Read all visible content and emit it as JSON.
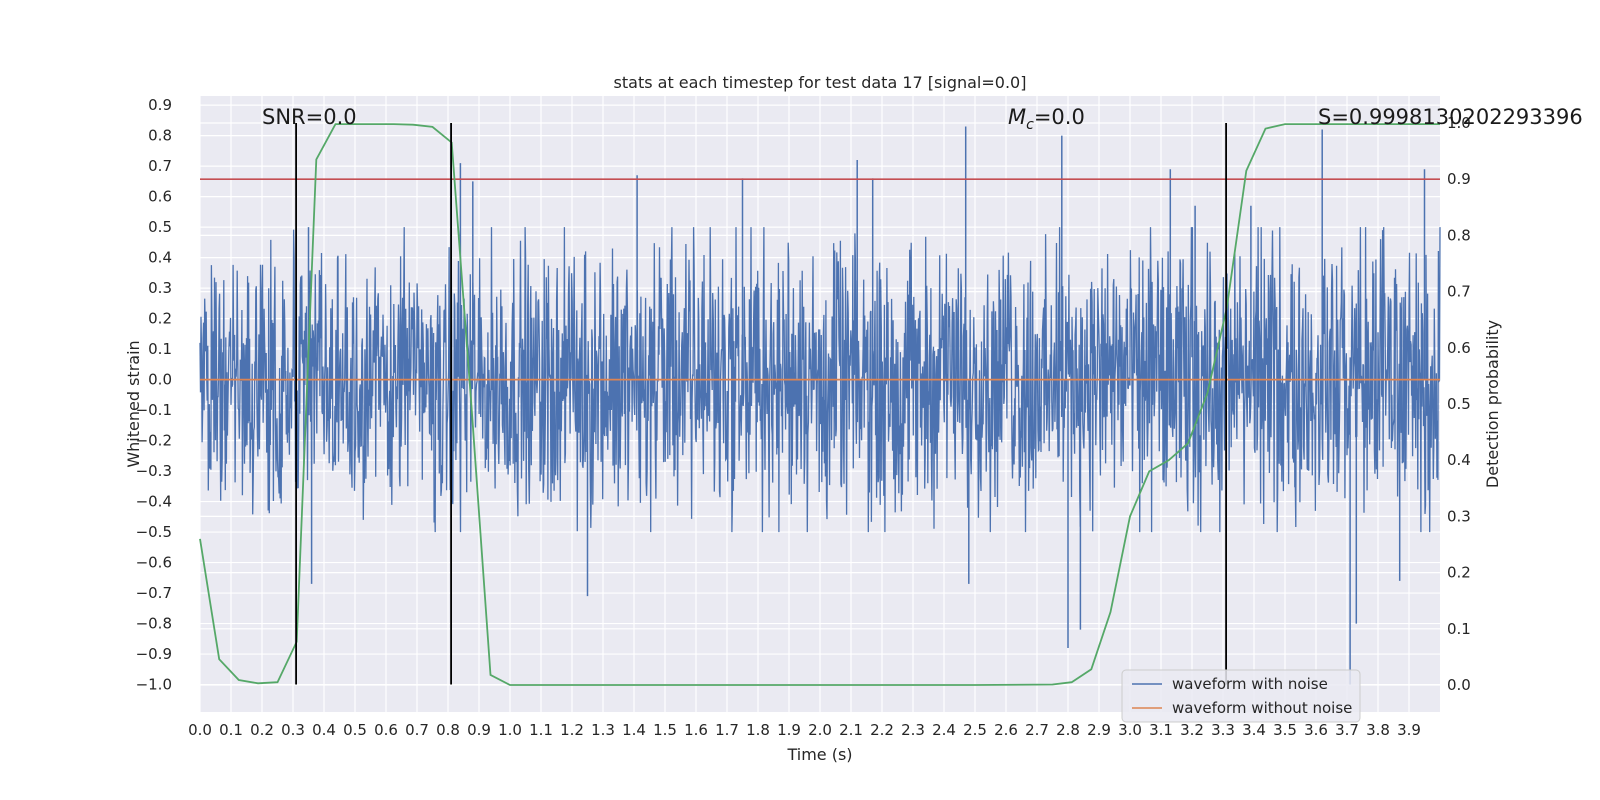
{
  "chart_data": {
    "type": "line",
    "title": "stats at each timestep for test data 17 [signal=0.0]",
    "xlabel": "Time (s)",
    "ylabel": "Whitened strain",
    "y2label": "Detection probability",
    "xlim": [
      0.0,
      4.0
    ],
    "ylim": [
      -1.09,
      0.93
    ],
    "y2lim": [
      -0.048,
      1.048
    ],
    "x_ticks": [
      0.0,
      0.1,
      0.2,
      0.3,
      0.4,
      0.5,
      0.6,
      0.7,
      0.8,
      0.9,
      1.0,
      1.1,
      1.2,
      1.3,
      1.4,
      1.5,
      1.6,
      1.7,
      1.8,
      1.9,
      2.0,
      2.1,
      2.2,
      2.3,
      2.4,
      2.5,
      2.6,
      2.7,
      2.8,
      2.9,
      3.0,
      3.1,
      3.2,
      3.3,
      3.4,
      3.5,
      3.6,
      3.7,
      3.8,
      3.9
    ],
    "y_ticks": [
      0.9,
      0.8,
      0.7,
      0.6,
      0.5,
      0.4,
      0.3,
      0.2,
      0.1,
      0.0,
      -0.1,
      -0.2,
      -0.3,
      -0.4,
      -0.5,
      -0.6,
      -0.7,
      -0.8,
      -0.9,
      -1.0
    ],
    "y_tick_labels": [
      "0.9",
      "0.8",
      "0.7",
      "0.6",
      "0.5",
      "0.4",
      "0.3",
      "0.2",
      "0.1",
      "0.0",
      "−0.1",
      "−0.2",
      "−0.3",
      "−0.4",
      "−0.5",
      "−0.6",
      "−0.7",
      "−0.8",
      "−0.9",
      "−1.0"
    ],
    "y2_ticks": [
      1.0,
      0.9,
      0.8,
      0.7,
      0.6,
      0.5,
      0.4,
      0.3,
      0.2,
      0.1,
      0.0
    ],
    "y2_tick_labels": [
      "1.0",
      "0.9",
      "0.8",
      "0.7",
      "0.6",
      "0.5",
      "0.4",
      "0.3",
      "0.2",
      "0.1",
      "0.0"
    ],
    "grid": true,
    "legend_position": "bottom-right",
    "series": [
      {
        "name": "waveform with noise",
        "color": "#4c72b0",
        "axis": "left",
        "kind": "noise",
        "typical_range": [
          -0.5,
          0.5
        ],
        "peaks": [
          {
            "x": 0.35,
            "y": 0.5
          },
          {
            "x": 0.36,
            "y": -0.67
          },
          {
            "x": 0.81,
            "y": 0.84
          },
          {
            "x": 0.84,
            "y": 0.71
          },
          {
            "x": 0.88,
            "y": 0.65
          },
          {
            "x": 1.25,
            "y": -0.71
          },
          {
            "x": 1.41,
            "y": 0.67
          },
          {
            "x": 1.75,
            "y": 0.66
          },
          {
            "x": 2.12,
            "y": 0.72
          },
          {
            "x": 2.17,
            "y": 0.66
          },
          {
            "x": 2.47,
            "y": 0.83
          },
          {
            "x": 2.48,
            "y": -0.67
          },
          {
            "x": 2.78,
            "y": 0.8
          },
          {
            "x": 2.8,
            "y": -0.88
          },
          {
            "x": 2.84,
            "y": -0.82
          },
          {
            "x": 3.13,
            "y": 0.69
          },
          {
            "x": 3.21,
            "y": 0.57
          },
          {
            "x": 3.39,
            "y": 0.57
          },
          {
            "x": 3.62,
            "y": 0.82
          },
          {
            "x": 3.71,
            "y": -1.0
          },
          {
            "x": 3.73,
            "y": -0.8
          },
          {
            "x": 3.87,
            "y": -0.66
          },
          {
            "x": 3.95,
            "y": 0.69
          }
        ]
      },
      {
        "name": "waveform without noise",
        "color": "#dd8452",
        "axis": "left",
        "x": [
          0.0,
          4.0
        ],
        "y": [
          0.0,
          0.0
        ]
      },
      {
        "color": "#55a868",
        "axis": "right",
        "x": [
          0.0,
          0.062,
          0.125,
          0.187,
          0.25,
          0.312,
          0.375,
          0.437,
          0.5,
          0.562,
          0.625,
          0.687,
          0.75,
          0.812,
          0.875,
          0.937,
          1.0,
          1.062,
          1.125,
          1.5,
          2.0,
          2.5,
          2.75,
          2.812,
          2.875,
          2.937,
          3.0,
          3.062,
          3.125,
          3.187,
          3.25,
          3.312,
          3.375,
          3.437,
          3.5,
          3.562,
          3.625,
          3.687,
          3.75,
          3.812,
          3.875,
          3.937,
          4.0
        ],
        "y": [
          0.26,
          0.046,
          0.009,
          0.003,
          0.005,
          0.077,
          0.935,
          0.998,
          0.998,
          0.998,
          0.998,
          0.997,
          0.993,
          0.965,
          0.5,
          0.018,
          0.0,
          0.0,
          0.0,
          0.0,
          0.0,
          0.0,
          0.001,
          0.005,
          0.028,
          0.13,
          0.3,
          0.38,
          0.4,
          0.43,
          0.52,
          0.67,
          0.915,
          0.99,
          0.998,
          0.998,
          0.998,
          0.998,
          0.998,
          0.998,
          0.998,
          0.998,
          0.998
        ]
      }
    ],
    "threshold": {
      "value": 0.9,
      "axis": "right",
      "color": "#c44e52"
    },
    "vertical_lines": [
      0.31,
      0.81,
      3.31
    ],
    "annotations": [
      {
        "id": "snr",
        "text": "SNR=0.0"
      },
      {
        "id": "mc_val",
        "text": "=0.0"
      },
      {
        "id": "mc_sym",
        "text": "M",
        "sub": "c"
      },
      {
        "id": "s",
        "text": "S=0.9998130202293396"
      }
    ]
  }
}
